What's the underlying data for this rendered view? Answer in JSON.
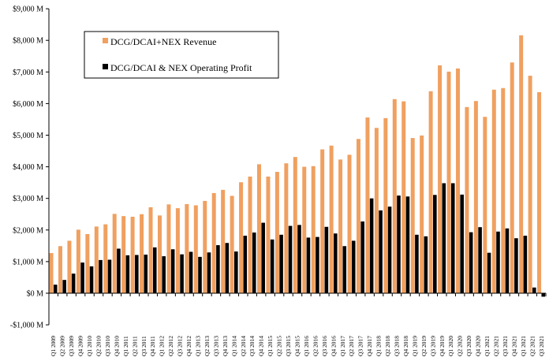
{
  "chart_data": {
    "type": "bar",
    "title": "",
    "xlabel": "",
    "ylabel": "",
    "ylim": [
      -1000,
      9000
    ],
    "yticks": [
      -1000,
      0,
      1000,
      2000,
      3000,
      4000,
      5000,
      6000,
      7000,
      8000,
      9000
    ],
    "ytick_labels": [
      "-$1,000 M",
      "$0 M",
      "$1,000 M",
      "$2,000 M",
      "$3,000 M",
      "$4,000 M",
      "$5,000 M",
      "$6,000 M",
      "$7,000 M",
      "$8,000 M",
      "$9,000 M"
    ],
    "grid": false,
    "legend_position": "top-left",
    "categories": [
      "Q1 2009",
      "Q2 2009",
      "Q3 2009",
      "Q4 2009",
      "Q1 2010",
      "Q2 2010",
      "Q3 2010",
      "Q4 2010",
      "Q1 2011",
      "Q2 2011",
      "Q3 2011",
      "Q4 2011",
      "Q1 2012",
      "Q2 2012",
      "Q3 2012",
      "Q4 2012",
      "Q1 2013",
      "Q2 2013",
      "Q3 2013",
      "Q4 2013",
      "Q1 2014",
      "Q2 2014",
      "Q3 2014",
      "Q4 2014",
      "Q1 2015",
      "Q2 2015",
      "Q3 2015",
      "Q4 2015",
      "Q1 2016",
      "Q2 2016",
      "Q3 2016",
      "Q4 2016",
      "Q1 2017",
      "Q2 2017",
      "Q3 2017",
      "Q4 2017",
      "Q1 2018",
      "Q2 2018",
      "Q3 2018",
      "Q4 2018",
      "Q1 2019",
      "Q2 2019",
      "Q3 2019",
      "Q4 2019",
      "Q1 2020",
      "Q2 2020",
      "Q3 2020",
      "Q4 2020",
      "Q1 2021",
      "Q2 2021",
      "Q3 2021",
      "Q4 2021",
      "Q1 2021",
      "Q2 2021",
      "Q3 2021"
    ],
    "series": [
      {
        "name": "DCG/DCAI+NEX Revenue",
        "color": "#f0a060",
        "values": [
          1270,
          1490,
          1660,
          2010,
          1870,
          2110,
          2180,
          2510,
          2440,
          2420,
          2500,
          2720,
          2460,
          2810,
          2690,
          2820,
          2780,
          2920,
          3170,
          3270,
          3080,
          3510,
          3690,
          4080,
          3690,
          3840,
          4110,
          4310,
          4000,
          4020,
          4550,
          4670,
          4230,
          4380,
          4880,
          5560,
          5230,
          5540,
          6140,
          6070,
          4910,
          4990,
          6390,
          7210,
          7010,
          7110,
          5890,
          6080,
          5580,
          6440,
          6490,
          7300,
          8160,
          6880,
          6360
        ]
      },
      {
        "name": "DCG/DCAI & NEX Operating Profit",
        "color": "#000000",
        "values": [
          270,
          420,
          620,
          970,
          850,
          1050,
          1060,
          1410,
          1200,
          1210,
          1220,
          1450,
          1170,
          1390,
          1230,
          1310,
          1150,
          1290,
          1520,
          1590,
          1320,
          1820,
          1920,
          2230,
          1700,
          1850,
          2130,
          2160,
          1760,
          1780,
          2100,
          1890,
          1490,
          1660,
          2270,
          3000,
          2620,
          2740,
          3090,
          3060,
          1850,
          1800,
          3110,
          3480,
          3480,
          3120,
          1930,
          2090,
          1280,
          1950,
          2050,
          1740,
          1820,
          180,
          -110
        ]
      }
    ]
  }
}
